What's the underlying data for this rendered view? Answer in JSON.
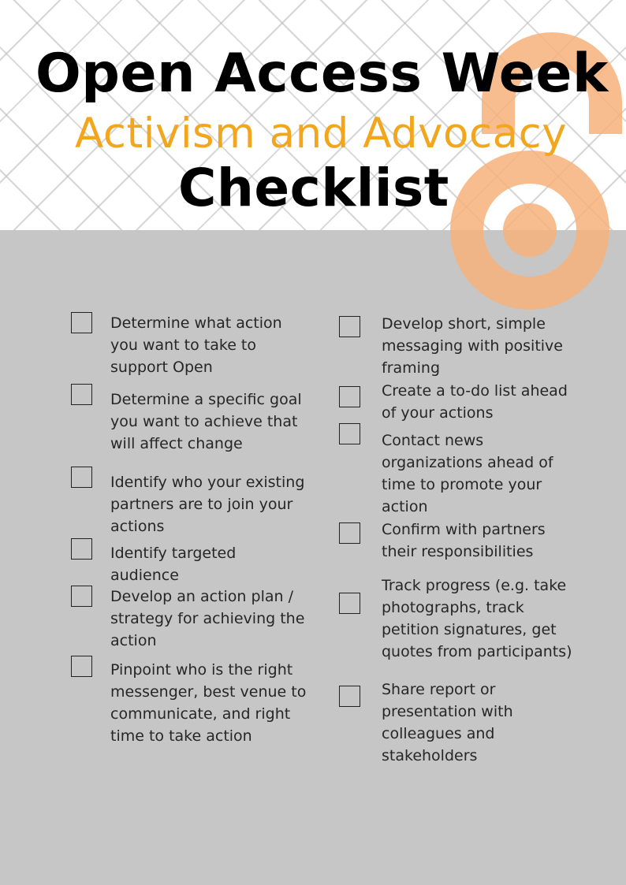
{
  "header": {
    "title_main": "Open Access Week",
    "title_sub": "Activism and Advocacy",
    "title_checklist": "Checklist"
  },
  "colors": {
    "accent_orange": "#f2a61e",
    "logo_orange": "#f7b27a",
    "panel_gray": "#c6c6c6"
  },
  "logo": {
    "icon": "open-access-lock-icon"
  },
  "checklist": {
    "left_column": [
      {
        "lines": [
          "Determine what action",
          "you want to take to",
          "support Open"
        ]
      },
      {
        "lines": [
          "Determine a specific goal",
          "you want to achieve that",
          "will affect change"
        ]
      },
      {
        "lines": [
          "Identify who your existing",
          "partners are to join your",
          "actions"
        ]
      },
      {
        "lines": [
          "Identify targeted",
          "audience"
        ]
      },
      {
        "lines": [
          "Develop an action plan /",
          "strategy for achieving the",
          "action"
        ]
      },
      {
        "lines": [
          "Pinpoint who is the right",
          "messenger, best venue to",
          "communicate, and right",
          "time to take action"
        ]
      }
    ],
    "right_column": [
      {
        "lines": [
          "Develop short, simple",
          "messaging with positive",
          "framing"
        ]
      },
      {
        "lines": [
          "Create a to-do list ahead",
          "of your actions"
        ]
      },
      {
        "lines": [
          "Contact news",
          "organizations ahead of",
          "time to promote your",
          "action"
        ]
      },
      {
        "lines": [
          "Confirm with partners",
          "their responsibilities"
        ]
      },
      {
        "lines": [
          "Track progress (e.g. take",
          "photographs, track",
          "petition signatures, get",
          "quotes from participants)"
        ]
      },
      {
        "lines": [
          "Share report or",
          "presentation with",
          "colleagues and",
          "stakeholders"
        ]
      }
    ]
  }
}
